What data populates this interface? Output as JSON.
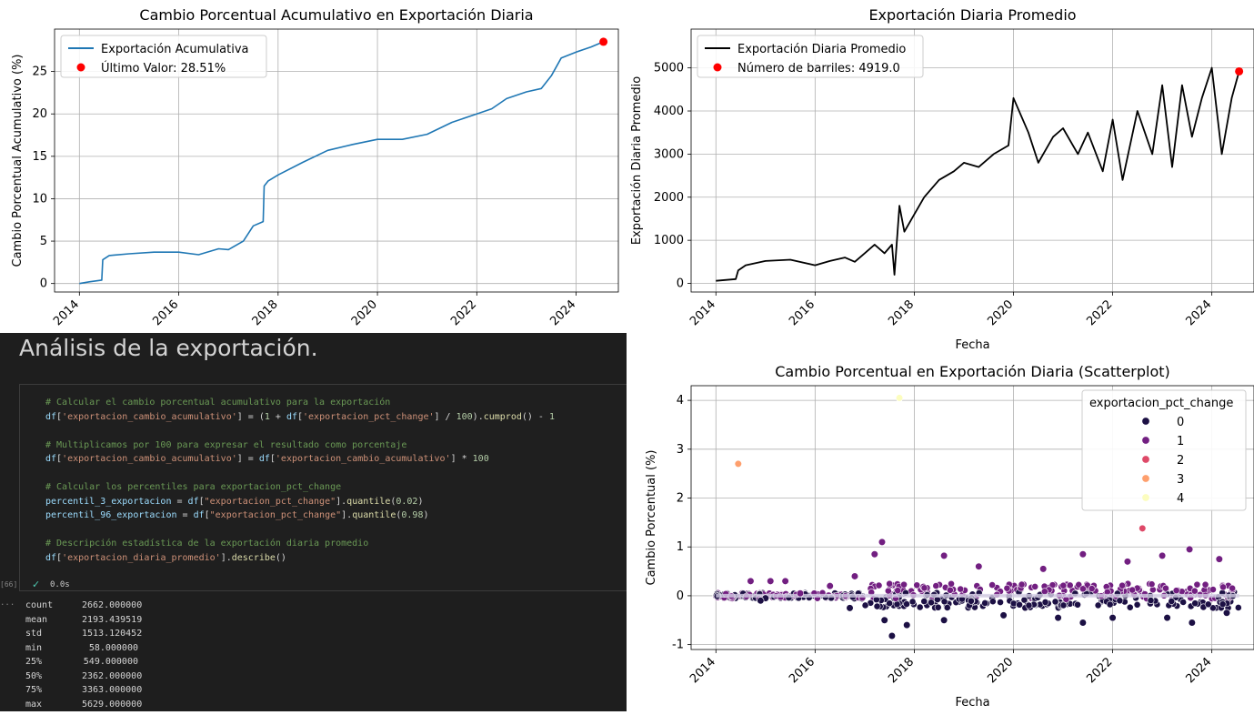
{
  "chart_data": [
    {
      "type": "line",
      "title": "Cambio Porcentual Acumulativo en Exportación Diaria",
      "xlabel": "",
      "ylabel": "Cambio Porcentual Acumulativo (%)",
      "xlim": [
        2013.5,
        2024.85
      ],
      "ylim": [
        -1,
        30
      ],
      "xticks": [
        2014,
        2016,
        2018,
        2020,
        2022,
        2024
      ],
      "yticks": [
        0,
        5,
        10,
        15,
        20,
        25
      ],
      "grid": true,
      "legend_position": "top-left",
      "series": [
        {
          "name": "Exportación Acumulativa",
          "color": "#1f77b4",
          "x": [
            2014.0,
            2014.2,
            2014.45,
            2014.47,
            2014.6,
            2015.0,
            2015.5,
            2016.0,
            2016.4,
            2016.8,
            2017.0,
            2017.3,
            2017.5,
            2017.7,
            2017.72,
            2017.8,
            2018.0,
            2018.5,
            2019.0,
            2019.5,
            2020.0,
            2020.5,
            2021.0,
            2021.5,
            2022.0,
            2022.3,
            2022.6,
            2023.0,
            2023.3,
            2023.5,
            2023.7,
            2024.0,
            2024.3,
            2024.55
          ],
          "y": [
            0.0,
            0.2,
            0.4,
            2.8,
            3.3,
            3.5,
            3.7,
            3.7,
            3.4,
            4.1,
            4.0,
            5.0,
            6.8,
            7.3,
            11.5,
            12.1,
            12.8,
            14.3,
            15.7,
            16.4,
            17.0,
            17.0,
            17.6,
            19.0,
            20.0,
            20.6,
            21.8,
            22.6,
            23.0,
            24.5,
            26.6,
            27.3,
            27.9,
            28.51
          ]
        }
      ],
      "marker": {
        "name": "Último Valor: 28.51%",
        "x": 2024.55,
        "y": 28.51,
        "color": "#ff0000"
      }
    },
    {
      "type": "line",
      "title": "Exportación Diaria Promedio",
      "xlabel": "Fecha",
      "ylabel": "Exportación Diaria Promedio",
      "xlim": [
        2013.5,
        2024.85
      ],
      "ylim": [
        -200,
        5900
      ],
      "xticks": [
        2014,
        2016,
        2018,
        2020,
        2022,
        2024
      ],
      "yticks": [
        0,
        1000,
        2000,
        3000,
        4000,
        5000
      ],
      "grid": true,
      "legend_position": "top-left",
      "series": [
        {
          "name": "Exportación Diaria Promedio",
          "color": "#000000",
          "x": [
            2014.0,
            2014.4,
            2014.45,
            2014.6,
            2015.0,
            2015.5,
            2016.0,
            2016.3,
            2016.6,
            2016.8,
            2017.0,
            2017.2,
            2017.4,
            2017.55,
            2017.6,
            2017.7,
            2017.8,
            2018.0,
            2018.2,
            2018.5,
            2018.8,
            2019.0,
            2019.3,
            2019.6,
            2019.9,
            2020.0,
            2020.3,
            2020.5,
            2020.8,
            2021.0,
            2021.3,
            2021.5,
            2021.8,
            2022.0,
            2022.2,
            2022.5,
            2022.8,
            2023.0,
            2023.2,
            2023.4,
            2023.6,
            2023.8,
            2024.0,
            2024.2,
            2024.4,
            2024.55
          ],
          "y": [
            60,
            100,
            300,
            420,
            520,
            550,
            420,
            520,
            600,
            500,
            700,
            900,
            700,
            900,
            200,
            1800,
            1200,
            1600,
            2000,
            2400,
            2600,
            2800,
            2700,
            3000,
            3200,
            4300,
            3500,
            2800,
            3400,
            3600,
            3000,
            3500,
            2600,
            3800,
            2400,
            4000,
            3000,
            4600,
            2700,
            4600,
            3400,
            4300,
            5000,
            3000,
            4300,
            4919
          ]
        }
      ],
      "marker": {
        "name": "Número de barriles: 4919.0",
        "x": 2024.55,
        "y": 4919,
        "color": "#ff0000"
      }
    },
    {
      "type": "scatter",
      "title": "Cambio Porcentual en Exportación Diaria (Scatterplot)",
      "xlabel": "Fecha",
      "ylabel": "Cambio Porcentual (%)",
      "xlim": [
        2013.5,
        2024.85
      ],
      "ylim": [
        -1.1,
        4.3
      ],
      "xticks": [
        2014,
        2016,
        2018,
        2020,
        2022,
        2024
      ],
      "yticks": [
        -1,
        0,
        1,
        2,
        3,
        4
      ],
      "grid": true,
      "legend_position": "top-right",
      "legend_title": "exportacion_pct_change",
      "hue_levels": [
        {
          "label": "0",
          "color": "#1c1044"
        },
        {
          "label": "1",
          "color": "#721f81"
        },
        {
          "label": "2",
          "color": "#de4968"
        },
        {
          "label": "3",
          "color": "#fe9f6d"
        },
        {
          "label": "4",
          "color": "#fcfdbf"
        }
      ],
      "points": [
        {
          "x": 2014.45,
          "y": 2.7,
          "hue": 3
        },
        {
          "x": 2017.7,
          "y": 4.05,
          "hue": 4
        },
        {
          "x": 2022.6,
          "y": 1.38,
          "hue": 2
        },
        {
          "x": 2017.35,
          "y": 1.1,
          "hue": 1
        },
        {
          "x": 2017.2,
          "y": 0.85,
          "hue": 1
        },
        {
          "x": 2023.55,
          "y": 0.95,
          "hue": 1
        },
        {
          "x": 2021.4,
          "y": 0.85,
          "hue": 1
        },
        {
          "x": 2018.6,
          "y": 0.82,
          "hue": 1
        },
        {
          "x": 2023.0,
          "y": 0.82,
          "hue": 1
        },
        {
          "x": 2024.15,
          "y": 0.75,
          "hue": 1
        },
        {
          "x": 2022.3,
          "y": 0.7,
          "hue": 1
        },
        {
          "x": 2019.3,
          "y": 0.6,
          "hue": 1
        },
        {
          "x": 2020.6,
          "y": 0.55,
          "hue": 1
        },
        {
          "x": 2017.55,
          "y": -0.82,
          "hue": 0
        },
        {
          "x": 2017.85,
          "y": -0.6,
          "hue": 0
        },
        {
          "x": 2018.6,
          "y": -0.5,
          "hue": 0
        },
        {
          "x": 2021.4,
          "y": -0.55,
          "hue": 0
        },
        {
          "x": 2023.6,
          "y": -0.55,
          "hue": 0
        },
        {
          "x": 2017.4,
          "y": -0.5,
          "hue": 0
        },
        {
          "x": 2022.0,
          "y": -0.45,
          "hue": 0
        },
        {
          "x": 2020.9,
          "y": -0.45,
          "hue": 0
        },
        {
          "x": 2019.8,
          "y": -0.4,
          "hue": 0
        },
        {
          "x": 2023.1,
          "y": -0.45,
          "hue": 0
        },
        {
          "x": 2024.3,
          "y": -0.35,
          "hue": 0
        },
        {
          "x": 2014.7,
          "y": 0.3,
          "hue": 1
        },
        {
          "x": 2015.1,
          "y": 0.3,
          "hue": 1
        },
        {
          "x": 2015.4,
          "y": 0.3,
          "hue": 1
        },
        {
          "x": 2016.3,
          "y": 0.2,
          "hue": 1
        },
        {
          "x": 2016.8,
          "y": 0.4,
          "hue": 1
        },
        {
          "x": 2015.7,
          "y": 0.05,
          "hue": 1
        },
        {
          "x": 2016.7,
          "y": -0.25,
          "hue": 0
        },
        {
          "x": 2015.0,
          "y": -0.05,
          "hue": 0
        },
        {
          "x": 2014.9,
          "y": -0.1,
          "hue": 0
        }
      ]
    }
  ],
  "notebook": {
    "heading": "Análisis de la exportación.",
    "code_lines": [
      [
        {
          "t": "# Calcular el cambio porcentual acumulativo para la exportación",
          "c": "cm"
        }
      ],
      [
        {
          "t": "df",
          "c": "var"
        },
        {
          "t": "[",
          "c": ""
        },
        {
          "t": "'exportacion_cambio_acumulativo'",
          "c": "str"
        },
        {
          "t": "] = (",
          "c": ""
        },
        {
          "t": "1",
          "c": "num"
        },
        {
          "t": " + ",
          "c": ""
        },
        {
          "t": "df",
          "c": "var"
        },
        {
          "t": "[",
          "c": ""
        },
        {
          "t": "'exportacion_pct_change'",
          "c": "str"
        },
        {
          "t": "] / ",
          "c": ""
        },
        {
          "t": "100",
          "c": "num"
        },
        {
          "t": ").",
          "c": ""
        },
        {
          "t": "cumprod",
          "c": "fn"
        },
        {
          "t": "() - ",
          "c": ""
        },
        {
          "t": "1",
          "c": "num"
        }
      ],
      [],
      [
        {
          "t": "# Multiplicamos por 100 para expresar el resultado como porcentaje",
          "c": "cm"
        }
      ],
      [
        {
          "t": "df",
          "c": "var"
        },
        {
          "t": "[",
          "c": ""
        },
        {
          "t": "'exportacion_cambio_acumulativo'",
          "c": "str"
        },
        {
          "t": "] = ",
          "c": ""
        },
        {
          "t": "df",
          "c": "var"
        },
        {
          "t": "[",
          "c": ""
        },
        {
          "t": "'exportacion_cambio_acumulativo'",
          "c": "str"
        },
        {
          "t": "] * ",
          "c": ""
        },
        {
          "t": "100",
          "c": "num"
        }
      ],
      [],
      [
        {
          "t": "# Calcular los percentiles para exportacion_pct_change",
          "c": "cm"
        }
      ],
      [
        {
          "t": "percentil_3_exportacion",
          "c": "var"
        },
        {
          "t": " = ",
          "c": ""
        },
        {
          "t": "df",
          "c": "var"
        },
        {
          "t": "[",
          "c": ""
        },
        {
          "t": "\"exportacion_pct_change\"",
          "c": "str"
        },
        {
          "t": "].",
          "c": ""
        },
        {
          "t": "quantile",
          "c": "fn"
        },
        {
          "t": "(",
          "c": ""
        },
        {
          "t": "0.02",
          "c": "num"
        },
        {
          "t": ")",
          "c": ""
        }
      ],
      [
        {
          "t": "percentil_96_exportacion",
          "c": "var"
        },
        {
          "t": " = ",
          "c": ""
        },
        {
          "t": "df",
          "c": "var"
        },
        {
          "t": "[",
          "c": ""
        },
        {
          "t": "\"exportacion_pct_change\"",
          "c": "str"
        },
        {
          "t": "].",
          "c": ""
        },
        {
          "t": "quantile",
          "c": "fn"
        },
        {
          "t": "(",
          "c": ""
        },
        {
          "t": "0.98",
          "c": "num"
        },
        {
          "t": ")",
          "c": ""
        }
      ],
      [],
      [
        {
          "t": "# Descripción estadística de la exportación diaria promedio",
          "c": "cm"
        }
      ],
      [
        {
          "t": "df",
          "c": "var"
        },
        {
          "t": "[",
          "c": ""
        },
        {
          "t": "'exportacion_diaria_promedio'",
          "c": "str"
        },
        {
          "t": "].",
          "c": ""
        },
        {
          "t": "describe",
          "c": "fn"
        },
        {
          "t": "()",
          "c": ""
        }
      ]
    ],
    "exec_count": "[66]",
    "exec_time": "0.0s",
    "output_marker": "...",
    "describe_output": [
      {
        "stat": "count",
        "value": "2662.000000"
      },
      {
        "stat": "mean",
        "value": "2193.439519"
      },
      {
        "stat": "std",
        "value": "1513.120452"
      },
      {
        "stat": "min",
        "value": "58.000000"
      },
      {
        "stat": "25%",
        "value": "549.000000"
      },
      {
        "stat": "50%",
        "value": "2362.000000"
      },
      {
        "stat": "75%",
        "value": "3363.000000"
      },
      {
        "stat": "max",
        "value": "5629.000000"
      }
    ]
  }
}
